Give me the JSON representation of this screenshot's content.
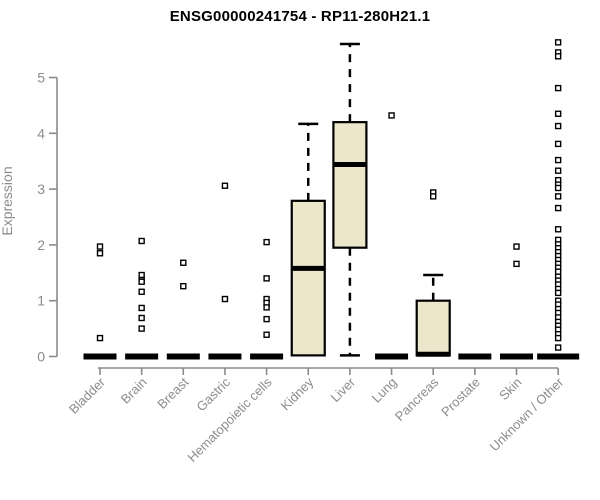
{
  "chart_data": {
    "type": "boxplot",
    "title": "ENSG00000241754 - RP11-280H21.1",
    "ylabel": "Expression",
    "xlabel": "",
    "ylim": [
      0,
      5.7
    ],
    "yticks": [
      0,
      1,
      2,
      3,
      4,
      5
    ],
    "grid": false,
    "legend": "none",
    "colors": {
      "box_fill": "#ECE7CB",
      "box_border": "#000000",
      "median": "#000000",
      "whisker": "#000000",
      "outlier_stroke": "#000000",
      "outlier_fill": "#ffffff",
      "axis": "#8A8A8A",
      "label": "#8C8C8C",
      "title": "#000000"
    },
    "categories": [
      "Bladder",
      "Brain",
      "Breast",
      "Gastric",
      "Hematopoietic cells",
      "Kidney",
      "Liver",
      "Lung",
      "Pancreas",
      "Prostate",
      "Skin",
      "Unknown / Other"
    ],
    "series": [
      {
        "name": "Bladder",
        "q1": 0,
        "median": 0,
        "q3": 0,
        "whisker_low": 0,
        "whisker_high": 0,
        "outliers": [
          1.97,
          1.85,
          0.33
        ]
      },
      {
        "name": "Brain",
        "q1": 0,
        "median": 0,
        "q3": 0,
        "whisker_low": 0,
        "whisker_high": 0,
        "outliers": [
          2.07,
          1.46,
          1.37,
          1.34,
          1.16,
          0.87,
          0.69,
          0.5
        ]
      },
      {
        "name": "Breast",
        "q1": 0,
        "median": 0,
        "q3": 0,
        "whisker_low": 0,
        "whisker_high": 0,
        "outliers": [
          1.68,
          1.26
        ]
      },
      {
        "name": "Gastric",
        "q1": 0,
        "median": 0,
        "q3": 0,
        "whisker_low": 0,
        "whisker_high": 0,
        "outliers": [
          3.06,
          1.03
        ]
      },
      {
        "name": "Hematopoietic cells",
        "q1": 0,
        "median": 0,
        "q3": 0,
        "whisker_low": 0,
        "whisker_high": 0,
        "outliers": [
          2.05,
          1.4,
          1.03,
          0.96,
          0.88,
          0.67,
          0.39
        ]
      },
      {
        "name": "Kidney",
        "q1": 0.02,
        "median": 1.58,
        "q3": 2.79,
        "whisker_low": 0.02,
        "whisker_high": 4.17,
        "outliers": []
      },
      {
        "name": "Liver",
        "q1": 1.95,
        "median": 3.44,
        "q3": 4.2,
        "whisker_low": 0.02,
        "whisker_high": 5.6,
        "outliers": []
      },
      {
        "name": "Lung",
        "q1": 0,
        "median": 0,
        "q3": 0,
        "whisker_low": 0,
        "whisker_high": 0,
        "outliers": [
          4.32
        ]
      },
      {
        "name": "Pancreas",
        "q1": 0.02,
        "median": 0.04,
        "q3": 1.0,
        "whisker_low": 0.02,
        "whisker_high": 1.46,
        "outliers": [
          2.94,
          2.87
        ]
      },
      {
        "name": "Prostate",
        "q1": 0,
        "median": 0,
        "q3": 0,
        "whisker_low": 0,
        "whisker_high": 0,
        "outliers": []
      },
      {
        "name": "Skin",
        "q1": 0,
        "median": 0,
        "q3": 0,
        "whisker_low": 0,
        "whisker_high": 0,
        "outliers": [
          1.97,
          1.66
        ]
      },
      {
        "name": "Unknown / Other",
        "q1": 0,
        "median": 0,
        "q3": 0,
        "whisker_low": 0,
        "whisker_high": 0,
        "wide": true,
        "outliers": [
          5.63,
          5.45,
          5.38,
          4.81,
          4.35,
          4.13,
          3.81,
          3.52,
          3.33,
          3.16,
          3.08,
          3.02,
          2.87,
          2.66,
          2.28,
          2.09,
          2.01,
          1.94,
          1.87,
          1.8,
          1.73,
          1.66,
          1.59,
          1.52,
          1.43,
          1.36,
          1.29,
          1.21,
          1.14,
          1.0,
          0.93,
          0.85,
          0.78,
          0.7,
          0.62,
          0.55,
          0.48,
          0.4,
          0.33,
          0.16
        ]
      }
    ]
  }
}
